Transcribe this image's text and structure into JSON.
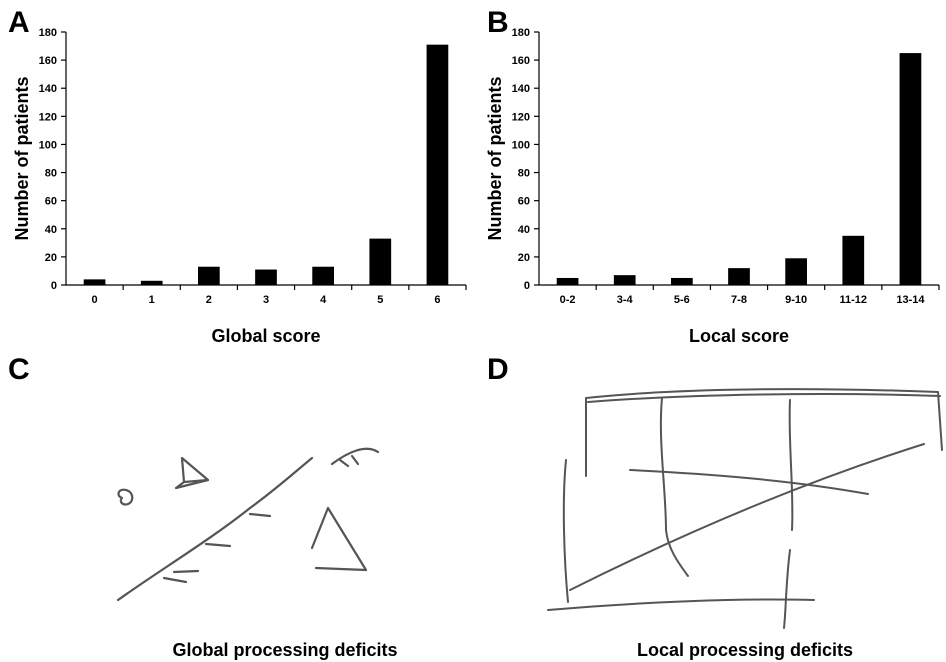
{
  "panels": {
    "a": {
      "letter": "A"
    },
    "b": {
      "letter": "B"
    },
    "c": {
      "letter": "C",
      "caption": "Global processing deficits"
    },
    "d": {
      "letter": "D",
      "caption": "Local processing deficits"
    }
  },
  "chart_data": [
    {
      "type": "bar",
      "panel": "A",
      "categories": [
        "0",
        "1",
        "2",
        "3",
        "4",
        "5",
        "6"
      ],
      "values": [
        4,
        3,
        13,
        11,
        13,
        33,
        171
      ],
      "title": "",
      "xlabel": "Global score",
      "ylabel": "Number of patients",
      "ylim": [
        0,
        180
      ],
      "yticks": [
        0,
        20,
        40,
        60,
        80,
        100,
        120,
        140,
        160,
        180
      ],
      "grid": false,
      "bar_color": "#000000"
    },
    {
      "type": "bar",
      "panel": "B",
      "categories": [
        "0-2",
        "3-4",
        "5-6",
        "7-8",
        "9-10",
        "11-12",
        "13-14"
      ],
      "values": [
        5,
        7,
        5,
        12,
        19,
        35,
        165
      ],
      "title": "",
      "xlabel": "Local score",
      "ylabel": "Number of patients",
      "ylim": [
        0,
        180
      ],
      "yticks": [
        0,
        20,
        40,
        60,
        80,
        100,
        120,
        140,
        160,
        180
      ],
      "grid": false,
      "bar_color": "#000000"
    }
  ]
}
